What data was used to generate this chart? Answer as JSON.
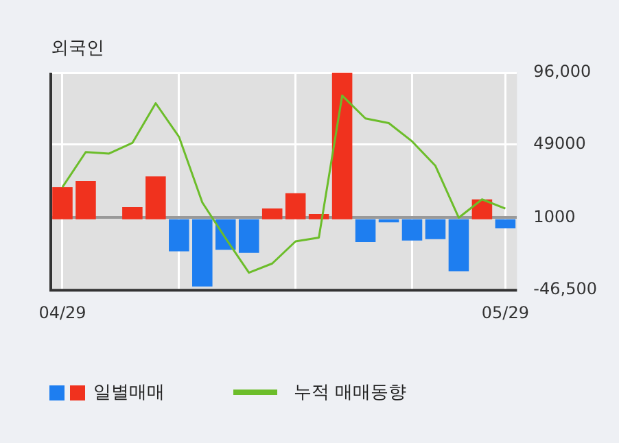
{
  "chart_data": {
    "type": "bar",
    "title": "외국인",
    "categories": [
      "04/29",
      null,
      null,
      null,
      null,
      null,
      null,
      null,
      null,
      null,
      null,
      null,
      null,
      null,
      null,
      null,
      null,
      null,
      null,
      "05/29"
    ],
    "series": [
      {
        "name": "일별매매",
        "colors": [
          "#f0321e",
          "#f0321e",
          null,
          "#f0321e",
          "#f0321e",
          "#1e7ef0",
          "#1e7ef0",
          "#1e7ef0",
          "#1e7ef0",
          "#f0321e",
          "#f0321e",
          "#f0321e",
          "#f0321e",
          "#1e7ef0",
          "#1e7ef0",
          "#1e7ef0",
          "#1e7ef0",
          "#1e7ef0",
          "#f0321e",
          "#1e7ef0"
        ],
        "values": [
          21000,
          25000,
          null,
          8000,
          28000,
          -21000,
          -44000,
          -20000,
          -22000,
          7000,
          17000,
          3500,
          96000,
          -15000,
          -2000,
          -14000,
          -13000,
          -34000,
          13000,
          -6000
        ]
      },
      {
        "name": "누적 매매동향",
        "type": "line",
        "color": "#6cbd2a",
        "values": [
          21000,
          44000,
          43000,
          50000,
          76000,
          54000,
          11000,
          -12500,
          -35000,
          -29000,
          -14500,
          -12000,
          81000,
          66000,
          63000,
          51000,
          35000,
          1000,
          13000,
          7000
        ]
      }
    ],
    "ylim": [
      -46500,
      96000
    ],
    "yticks": [
      {
        "value": 96000,
        "label": "96,000"
      },
      49000,
      1000,
      {
        "value": -46500,
        "label": "-46,500"
      }
    ],
    "grid": true,
    "legend": "bottom",
    "marker": "none",
    "line_style": "solid"
  }
}
